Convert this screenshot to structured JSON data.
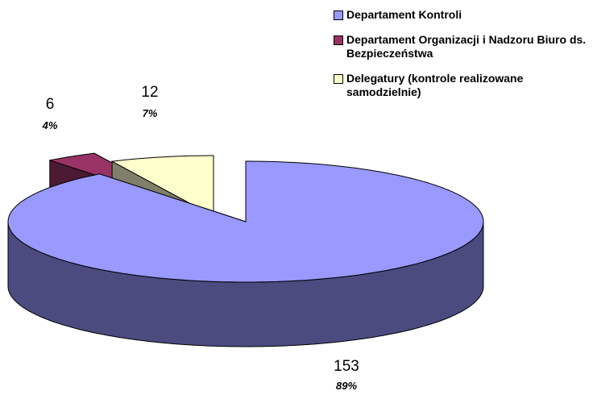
{
  "chart_data": {
    "type": "pie",
    "categories": [
      "Departament Kontroli",
      "Departament Organizacji i Nadzoru Biuro ds. Bezpieczeństwa",
      "Delegatury (kontrole realizowane samodzielnie)"
    ],
    "values": [
      153,
      6,
      12
    ],
    "percent_labels": [
      "89%",
      "4%",
      "7%"
    ],
    "colors": [
      "#9999ff",
      "#993366",
      "#ffffcc"
    ],
    "side_colors": [
      "#4b4b80",
      "#4d1a33",
      "#80806a"
    ],
    "legend": "top-right"
  }
}
